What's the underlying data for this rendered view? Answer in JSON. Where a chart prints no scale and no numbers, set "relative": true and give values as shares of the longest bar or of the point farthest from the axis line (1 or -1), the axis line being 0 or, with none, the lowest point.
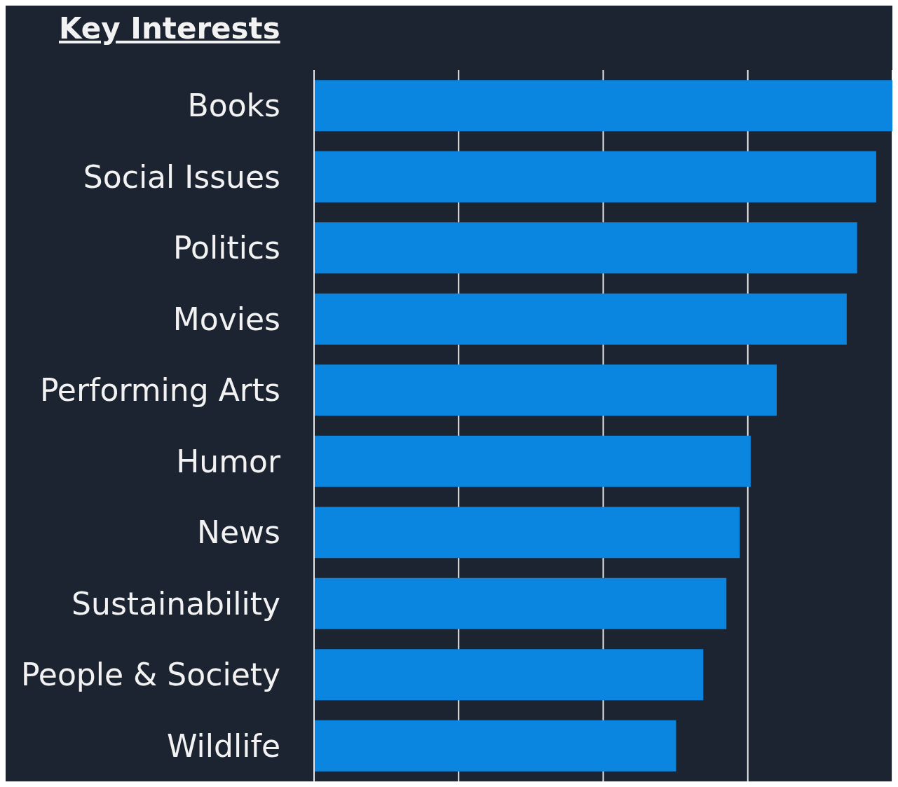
{
  "chart_data": {
    "type": "bar",
    "title": "Key Interests",
    "orientation": "horizontal",
    "relative": true,
    "grid": "x",
    "legend": false,
    "categories": [
      "Books",
      "Social Issues",
      "Politics",
      "Movies",
      "Performing Arts",
      "Humor",
      "News",
      "Sustainability",
      "People & Society",
      "Wildlife"
    ],
    "series": [
      {
        "color": "#0a86e0",
        "values": [
          1,
          0.972,
          0.939,
          0.921,
          0.8,
          0.755,
          0.736,
          0.713,
          0.673,
          0.626
        ]
      }
    ]
  }
}
